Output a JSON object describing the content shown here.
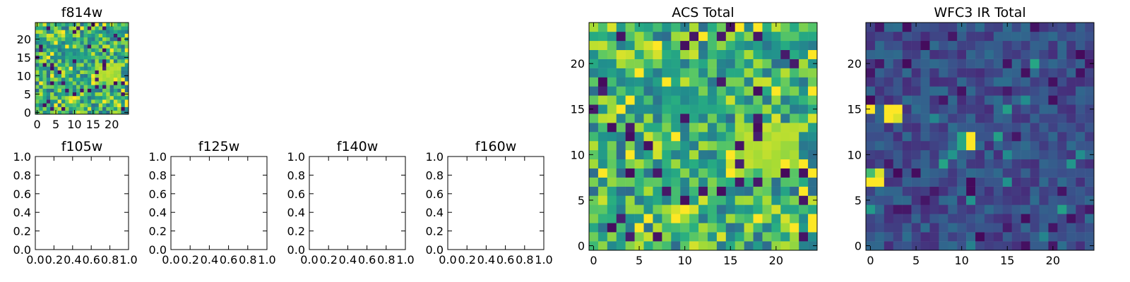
{
  "chart_data": [
    {
      "id": "f814w",
      "type": "heatmap",
      "title": "f814w",
      "grid_size": 25,
      "x_range": [
        -0.5,
        24.5
      ],
      "y_range": [
        -0.5,
        24.5
      ],
      "x_ticks": [
        0,
        5,
        10,
        15,
        20
      ],
      "y_ticks": [
        0,
        5,
        10,
        15,
        20
      ],
      "tick_labels": {
        "x": [
          "0",
          "5",
          "10",
          "15",
          "20"
        ],
        "y": [
          "0",
          "5",
          "10",
          "15",
          "20"
        ]
      },
      "colormap": "viridis",
      "data_source": "same_as_acs_total"
    },
    {
      "id": "f105w",
      "type": "empty",
      "title": "f105w",
      "x_range": [
        0,
        1
      ],
      "y_range": [
        0,
        1
      ],
      "x_ticks": [
        0,
        0.2,
        0.4,
        0.6,
        0.8,
        1
      ],
      "y_ticks": [
        0,
        0.2,
        0.4,
        0.6,
        0.8,
        1
      ],
      "tick_labels": {
        "x": [
          "0.0",
          "0.2",
          "0.4",
          "0.6",
          "0.8",
          "1.0"
        ],
        "y": [
          "0.0",
          "0.2",
          "0.4",
          "0.6",
          "0.8",
          "1.0"
        ]
      }
    },
    {
      "id": "f125w",
      "type": "empty",
      "title": "f125w",
      "x_range": [
        0,
        1
      ],
      "y_range": [
        0,
        1
      ],
      "x_ticks": [
        0,
        0.2,
        0.4,
        0.6,
        0.8,
        1
      ],
      "y_ticks": [
        0,
        0.2,
        0.4,
        0.6,
        0.8,
        1
      ],
      "tick_labels": {
        "x": [
          "0.0",
          "0.2",
          "0.4",
          "0.6",
          "0.8",
          "1.0"
        ],
        "y": [
          "0.0",
          "0.2",
          "0.4",
          "0.6",
          "0.8",
          "1.0"
        ]
      }
    },
    {
      "id": "f140w",
      "type": "empty",
      "title": "f140w",
      "x_range": [
        0,
        1
      ],
      "y_range": [
        0,
        1
      ],
      "x_ticks": [
        0,
        0.2,
        0.4,
        0.6,
        0.8,
        1
      ],
      "y_ticks": [
        0,
        0.2,
        0.4,
        0.6,
        0.8,
        1
      ],
      "tick_labels": {
        "x": [
          "0.0",
          "0.2",
          "0.4",
          "0.6",
          "0.8",
          "1.0"
        ],
        "y": [
          "0.0",
          "0.2",
          "0.4",
          "0.6",
          "0.8",
          "1.0"
        ]
      }
    },
    {
      "id": "f160w",
      "type": "empty",
      "title": "f160w",
      "x_range": [
        0,
        1
      ],
      "y_range": [
        0,
        1
      ],
      "x_ticks": [
        0,
        0.2,
        0.4,
        0.6,
        0.8,
        1
      ],
      "y_ticks": [
        0,
        0.2,
        0.4,
        0.6,
        0.8,
        1
      ],
      "tick_labels": {
        "x": [
          "0.0",
          "0.2",
          "0.4",
          "0.6",
          "0.8",
          "1.0"
        ],
        "y": [
          "0.0",
          "0.2",
          "0.4",
          "0.6",
          "0.8",
          "1.0"
        ]
      }
    },
    {
      "id": "acs_total",
      "type": "heatmap",
      "title": "ACS Total",
      "grid_size": 25,
      "x_range": [
        -0.5,
        24.5
      ],
      "y_range": [
        -0.5,
        24.5
      ],
      "x_ticks": [
        0,
        5,
        10,
        15,
        20
      ],
      "y_ticks": [
        0,
        5,
        10,
        15,
        20
      ],
      "tick_labels": {
        "x": [
          "0",
          "5",
          "10",
          "15",
          "20"
        ],
        "y": [
          "0",
          "5",
          "10",
          "15",
          "20"
        ]
      },
      "colormap": "viridis",
      "value_range": [
        0,
        1
      ],
      "features": {
        "base_level": 0.65,
        "variation": 0.3,
        "bright_region": {
          "x_range": [
            16,
            22
          ],
          "y_range": [
            9,
            13
          ],
          "level": 0.92
        }
      }
    },
    {
      "id": "wfc3_ir_total",
      "type": "heatmap",
      "title": "WFC3 IR Total",
      "grid_size": 25,
      "x_range": [
        -0.5,
        24.5
      ],
      "y_range": [
        -0.5,
        24.5
      ],
      "x_ticks": [
        0,
        5,
        10,
        15,
        20
      ],
      "y_ticks": [
        0,
        5,
        10,
        15,
        20
      ],
      "tick_labels": {
        "x": [
          "0",
          "5",
          "10",
          "15",
          "20"
        ],
        "y": [
          "0",
          "5",
          "10",
          "15",
          "20"
        ]
      },
      "colormap": "viridis",
      "value_range": [
        0,
        1
      ],
      "features": {
        "base_level": 0.25,
        "variation": 0.12,
        "bright_pixels": [
          {
            "x": 0,
            "y": 15,
            "value": 1.0
          },
          {
            "x": 2,
            "y": 15,
            "value": 1.0
          },
          {
            "x": 3,
            "y": 15,
            "value": 1.0
          },
          {
            "x": 2,
            "y": 14,
            "value": 1.0
          },
          {
            "x": 3,
            "y": 14,
            "value": 0.95
          },
          {
            "x": 0,
            "y": 7,
            "value": 1.0
          },
          {
            "x": 1,
            "y": 7,
            "value": 1.0
          },
          {
            "x": 1,
            "y": 8,
            "value": 0.95
          },
          {
            "x": 0,
            "y": 8,
            "value": 0.7
          },
          {
            "x": 11,
            "y": 12,
            "value": 1.0
          },
          {
            "x": 11,
            "y": 11,
            "value": 1.0
          },
          {
            "x": 10,
            "y": 11,
            "value": 0.6
          },
          {
            "x": 10,
            "y": 12,
            "value": 0.6
          },
          {
            "x": 18,
            "y": 20,
            "value": 0.6
          }
        ]
      }
    }
  ]
}
